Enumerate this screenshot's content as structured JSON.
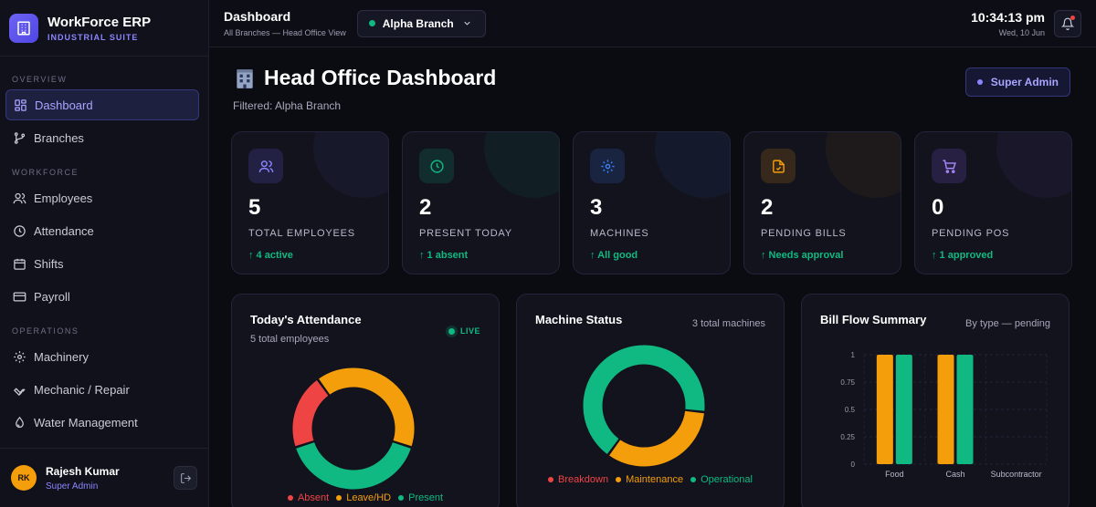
{
  "brand": {
    "title": "WorkForce ERP",
    "subtitle": "INDUSTRIAL SUITE"
  },
  "sidebar": {
    "sections": [
      {
        "label": "OVERVIEW",
        "items": [
          {
            "label": "Dashboard",
            "icon": "grid-icon",
            "active": true
          },
          {
            "label": "Branches",
            "icon": "branch-icon"
          }
        ]
      },
      {
        "label": "WORKFORCE",
        "items": [
          {
            "label": "Employees",
            "icon": "users-icon"
          },
          {
            "label": "Attendance",
            "icon": "clock-icon"
          },
          {
            "label": "Shifts",
            "icon": "calendar-icon"
          },
          {
            "label": "Payroll",
            "icon": "card-icon"
          }
        ]
      },
      {
        "label": "OPERATIONS",
        "items": [
          {
            "label": "Machinery",
            "icon": "gear-icon"
          },
          {
            "label": "Mechanic / Repair",
            "icon": "wrench-icon"
          },
          {
            "label": "Water Management",
            "icon": "water-icon"
          }
        ]
      }
    ],
    "user": {
      "initials": "RK",
      "name": "Rajesh Kumar",
      "role": "Super Admin"
    }
  },
  "topbar": {
    "title": "Dashboard",
    "subtitle": "All Branches — Head Office View",
    "branch": "Alpha Branch",
    "time": "10:34:13 pm",
    "date": "Wed, 10 Jun"
  },
  "page": {
    "title": "Head Office Dashboard",
    "filter": "Filtered: Alpha Branch",
    "role_badge": "Super Admin"
  },
  "stats": [
    {
      "value": "5",
      "label": "TOTAL EMPLOYEES",
      "sub": "↑ 4 active",
      "icon": "users-icon",
      "color": "#6d63f3"
    },
    {
      "value": "2",
      "label": "PRESENT TODAY",
      "sub": "↑ 1 absent",
      "icon": "clock-icon",
      "color": "#10b981"
    },
    {
      "value": "3",
      "label": "MACHINES",
      "sub": "↑ All good",
      "icon": "gear-icon",
      "color": "#3b82f6"
    },
    {
      "value": "2",
      "label": "PENDING BILLS",
      "sub": "↑ Needs approval",
      "icon": "file-check-icon",
      "color": "#f59e0b"
    },
    {
      "value": "0",
      "label": "PENDING POS",
      "sub": "↑ 1 approved",
      "icon": "cart-icon",
      "color": "#8b5cf6"
    }
  ],
  "panels": {
    "attendance": {
      "title": "Today's Attendance",
      "subtitle": "5 total employees",
      "live": "LIVE",
      "legend": [
        "Absent",
        "Leave/HD",
        "Present"
      ]
    },
    "machines": {
      "title": "Machine Status",
      "right": "3 total machines",
      "legend": [
        "Breakdown",
        "Maintenance",
        "Operational"
      ]
    },
    "bills": {
      "title": "Bill Flow Summary",
      "right": "By type — pending"
    }
  },
  "chart_data": [
    {
      "type": "pie",
      "categories": [
        "Absent",
        "Leave/HD",
        "Present"
      ],
      "values": [
        1,
        2,
        2
      ],
      "colors": [
        "#ef4444",
        "#f59e0b",
        "#10b981"
      ]
    },
    {
      "type": "pie",
      "categories": [
        "Breakdown",
        "Maintenance",
        "Operational"
      ],
      "values": [
        0,
        1,
        2
      ],
      "colors": [
        "#ef4444",
        "#f59e0b",
        "#10b981"
      ]
    },
    {
      "type": "bar",
      "categories": [
        "Food",
        "Cash",
        "Subcontractor"
      ],
      "series": [
        {
          "values": [
            1,
            1,
            0
          ],
          "color": "#f59e0b"
        },
        {
          "values": [
            1,
            1,
            0
          ],
          "color": "#10b981"
        }
      ],
      "yticks": [
        "0",
        "0.25",
        "0.5",
        "0.75",
        "1"
      ],
      "ylim": [
        0,
        1
      ]
    }
  ]
}
